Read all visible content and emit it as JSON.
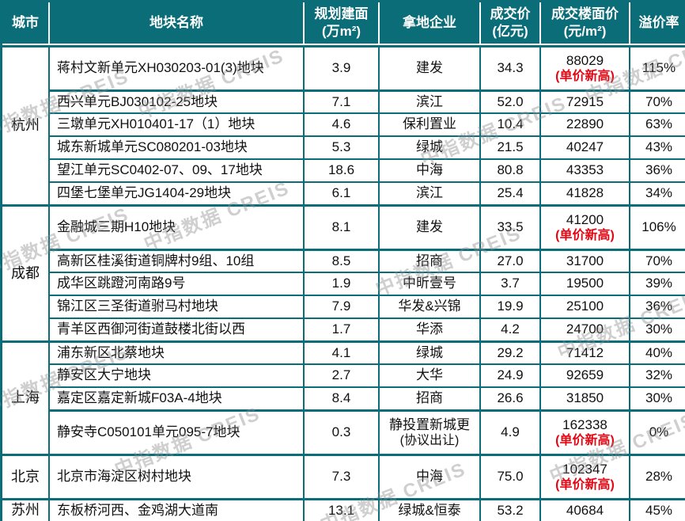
{
  "colors": {
    "teal": "#0b6d78",
    "red": "#e30613",
    "text": "#111111",
    "watermark": "#8c8c8c"
  },
  "watermark": {
    "text": "中指数据 CREIS"
  },
  "columns_display": [
    {
      "line1": "城市",
      "line2": ""
    },
    {
      "line1": "地块名称",
      "line2": ""
    },
    {
      "line1": "规划建面",
      "line2": "(万m²)"
    },
    {
      "line1": "拿地企业",
      "line2": ""
    },
    {
      "line1": "成交价",
      "line2": "(亿元)"
    },
    {
      "line1": "成交楼面价",
      "line2": "(元/m²)"
    },
    {
      "line1": "溢价率",
      "line2": ""
    }
  ],
  "chart_data": {
    "type": "table",
    "columns": [
      "城市",
      "地块名称",
      "规划建面(万m²)",
      "拿地企业",
      "成交价(亿元)",
      "成交楼面价(元/m²)",
      "溢价率"
    ],
    "rows": [
      {
        "city": "杭州",
        "name": "蒋村文新单元XH030203-01(3)地块",
        "area": "3.9",
        "company": "建发",
        "company_note": "",
        "price": "34.3",
        "floor": "88029",
        "floor_note": "(单价新高)",
        "premium": "115%"
      },
      {
        "city": "杭州",
        "name": "西兴单元BJ030102-25地块",
        "area": "7.1",
        "company": "滨江",
        "company_note": "",
        "price": "52.0",
        "floor": "72915",
        "floor_note": "",
        "premium": "70%"
      },
      {
        "city": "杭州",
        "name": "三墩单元XH010401-17（1）地块",
        "area": "4.6",
        "company": "保利置业",
        "company_note": "",
        "price": "10.4",
        "floor": "22890",
        "floor_note": "",
        "premium": "63%"
      },
      {
        "city": "杭州",
        "name": "城东新城单元SC080201-03地块",
        "area": "5.3",
        "company": "绿城",
        "company_note": "",
        "price": "21.5",
        "floor": "40247",
        "floor_note": "",
        "premium": "43%"
      },
      {
        "city": "杭州",
        "name": "望江单元SC0402-07、09、17地块",
        "area": "18.6",
        "company": "中海",
        "company_note": "",
        "price": "80.8",
        "floor": "43353",
        "floor_note": "",
        "premium": "36%"
      },
      {
        "city": "杭州",
        "name": "四堡七堡单元JG1404-29地块",
        "area": "6.1",
        "company": "滨江",
        "company_note": "",
        "price": "25.4",
        "floor": "41828",
        "floor_note": "",
        "premium": "34%"
      },
      {
        "city": "成都",
        "name": "金融城三期H10地块",
        "area": "8.1",
        "company": "建发",
        "company_note": "",
        "price": "33.5",
        "floor": "41200",
        "floor_note": "(单价新高)",
        "premium": "106%"
      },
      {
        "city": "成都",
        "name": "高新区桂溪街道铜牌村9组、10组",
        "area": "8.5",
        "company": "招商",
        "company_note": "",
        "price": "27.0",
        "floor": "31700",
        "floor_note": "",
        "premium": "70%"
      },
      {
        "city": "成都",
        "name": "成华区跳蹬河南路9号",
        "area": "1.9",
        "company": "中昕壹号",
        "company_note": "",
        "price": "3.7",
        "floor": "19500",
        "floor_note": "",
        "premium": "39%"
      },
      {
        "city": "成都",
        "name": "锦江区三圣街道驸马村地块",
        "area": "7.9",
        "company": "华发&兴锦",
        "company_note": "",
        "price": "19.9",
        "floor": "25100",
        "floor_note": "",
        "premium": "36%"
      },
      {
        "city": "成都",
        "name": "青羊区西御河街道鼓楼北街以西",
        "area": "1.7",
        "company": "华添",
        "company_note": "",
        "price": "4.2",
        "floor": "24700",
        "floor_note": "",
        "premium": "30%"
      },
      {
        "city": "上海",
        "name": "浦东新区北蔡地块",
        "area": "4.1",
        "company": "绿城",
        "company_note": "",
        "price": "29.2",
        "floor": "71412",
        "floor_note": "",
        "premium": "40%"
      },
      {
        "city": "上海",
        "name": "静安区大宁地块",
        "area": "2.7",
        "company": "大华",
        "company_note": "",
        "price": "24.9",
        "floor": "92659",
        "floor_note": "",
        "premium": "32%"
      },
      {
        "city": "上海",
        "name": "嘉定区嘉定新城F03A-4地块",
        "area": "8.4",
        "company": "招商",
        "company_note": "",
        "price": "26.6",
        "floor": "31850",
        "floor_note": "",
        "premium": "30%"
      },
      {
        "city": "上海",
        "name": "静安寺C050101单元095-7地块",
        "area": "0.3",
        "company": "静投置新城更",
        "company_note": "(协议出让)",
        "price": "4.9",
        "floor": "162338",
        "floor_note": "(单价新高)",
        "premium": "0%"
      },
      {
        "city": "北京",
        "name": "北京市海淀区树村地块",
        "area": "7.3",
        "company": "中海",
        "company_note": "",
        "price": "75.0",
        "floor": "102347",
        "floor_note": "(单价新高)",
        "premium": "28%"
      },
      {
        "city": "苏州",
        "name": "东板桥河西、金鸡湖大道南",
        "area": "13.1",
        "company": "绿城&恒泰",
        "company_note": "",
        "price": "53.2",
        "floor": "40684",
        "floor_note": "",
        "premium": "45%"
      }
    ]
  }
}
